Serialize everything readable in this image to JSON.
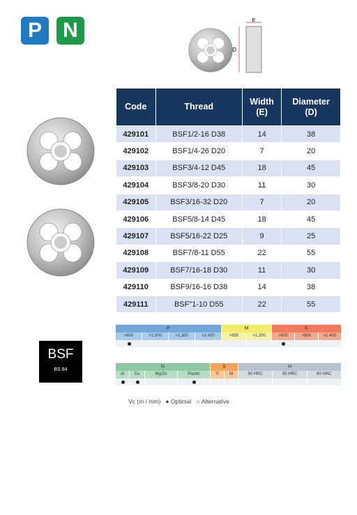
{
  "header": {
    "icons": [
      "P",
      "N"
    ],
    "diagram_labels": {
      "width": "E",
      "diameter": "D"
    }
  },
  "table": {
    "columns": [
      "Code",
      "Thread",
      "Width\n(E)",
      "Diameter\n(D)"
    ],
    "rows": [
      [
        "429101",
        "BSF1/2-16 D38",
        "14",
        "38"
      ],
      [
        "429102",
        "BSF1/4-26 D20",
        "7",
        "20"
      ],
      [
        "429103",
        "BSF3/4-12 D45",
        "18",
        "45"
      ],
      [
        "429104",
        "BSF3/8-20 D30",
        "11",
        "30"
      ],
      [
        "429105",
        "BSF3/16-32 D20",
        "7",
        "20"
      ],
      [
        "429106",
        "BSF5/8-14 D45",
        "18",
        "45"
      ],
      [
        "429107",
        "BSF5/16-22 D25",
        "9",
        "25"
      ],
      [
        "429108",
        "BSF7/8-11 D55",
        "22",
        "55"
      ],
      [
        "429109",
        "BSF7/16-18 D30",
        "11",
        "30"
      ],
      [
        "429110",
        "BSF9/16-16 D38",
        "14",
        "38"
      ],
      [
        "429111",
        "BSF\"1-10 D55",
        "22",
        "55"
      ]
    ]
  },
  "badge": {
    "title": "BSF",
    "subtitle": "BS 84"
  },
  "materials": [
    {
      "groups": [
        {
          "name": "P",
          "subs": [
            ">800",
            ">1.000",
            ">1.200",
            ">1.400"
          ]
        },
        {
          "name": "M",
          "subs": [
            ">950",
            ">1.200"
          ]
        },
        {
          "name": "K",
          "subs": [
            ">500",
            ">800",
            ">1.400"
          ]
        }
      ]
    },
    {
      "groups": [
        {
          "name": "N",
          "subs": [
            "Al",
            "Cu",
            "Mg/Zn",
            "Plastic"
          ]
        },
        {
          "name": "S",
          "subs": [
            "Ti",
            "Ni"
          ]
        },
        {
          "name": "H",
          "subs": [
            "50 HRC",
            "55 HRC",
            "60 HRC"
          ]
        }
      ]
    }
  ],
  "legend": {
    "unit": "Vc (m / mm)",
    "optimal": "Optimal",
    "alternative": "Alternative"
  }
}
